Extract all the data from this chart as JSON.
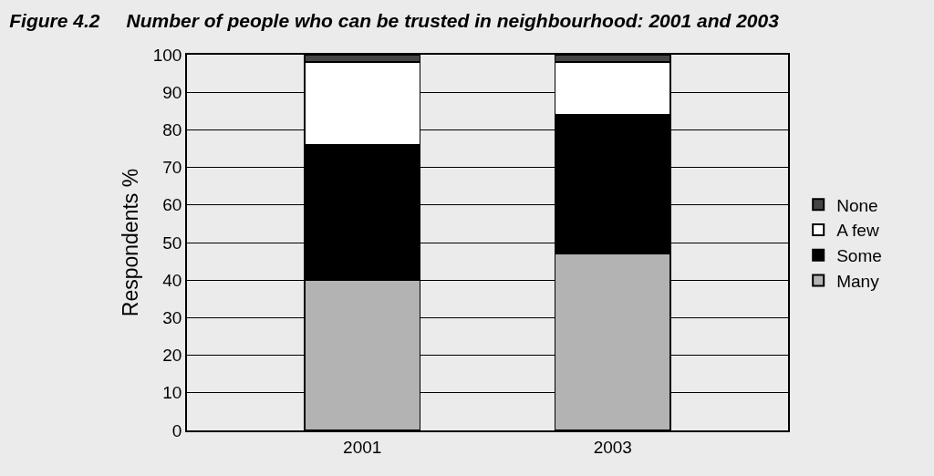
{
  "chart_data": {
    "type": "bar",
    "title": "Figure 4.2     Number of people who can be trusted in neighbourhood: 2001 and 2003",
    "ylabel": "Respondents %",
    "categories": [
      "2001",
      "2003"
    ],
    "stacked": true,
    "series": [
      {
        "name": "Many",
        "color": "#b3b3b3",
        "values": [
          40,
          47
        ]
      },
      {
        "name": "Some",
        "color": "#000000",
        "values": [
          36,
          37
        ]
      },
      {
        "name": "A few",
        "color": "#ffffff",
        "values": [
          22,
          14
        ]
      },
      {
        "name": "None",
        "color": "#444444",
        "values": [
          2,
          2
        ]
      }
    ],
    "ylim": [
      0,
      100
    ],
    "yticks": [
      0,
      10,
      20,
      30,
      40,
      50,
      60,
      70,
      80,
      90,
      100
    ],
    "grid": "y",
    "legend": "right"
  }
}
